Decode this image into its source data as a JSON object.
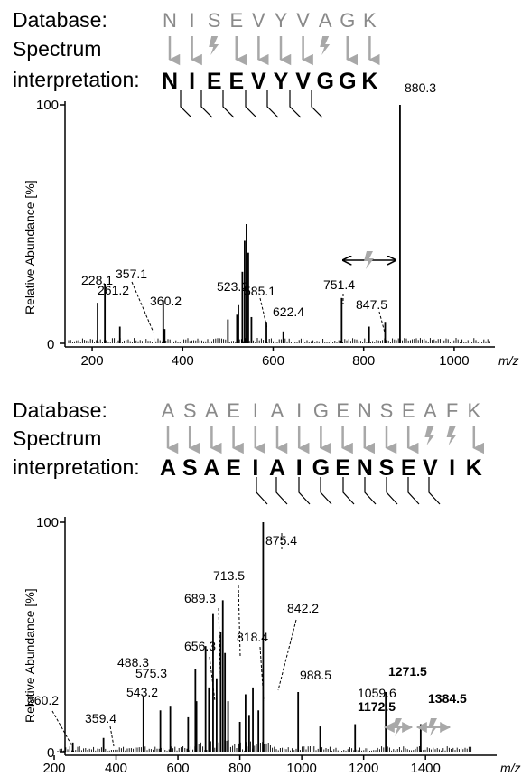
{
  "colors": {
    "axis": "#000000",
    "peak": "#000000",
    "arrow_gray": "#a8a8a8",
    "db_letter_gray": "#8a8a8a"
  },
  "panels": [
    {
      "database_label": "Database:",
      "spectrum_label_1": "Spectrum",
      "spectrum_label_2": "interpretation:",
      "database_sequence": [
        "N",
        "I",
        "S",
        "E",
        "V",
        "Y",
        "V",
        "A",
        "G",
        "K"
      ],
      "interpreted_sequence": [
        "N",
        "I",
        "E",
        "E",
        "V",
        "Y",
        "V",
        "G",
        "G",
        "K"
      ],
      "mismatch_positions": [
        2,
        7
      ],
      "ylabel": "Relative Abundance [%]",
      "xlabel": "m/z",
      "ytick_top": "100",
      "ytick_bottom": "0",
      "xticks": [
        "200",
        "400",
        "600",
        "800",
        "1000"
      ],
      "chart_data": {
        "type": "bar",
        "xlim": [
          140,
          1090
        ],
        "ylim": [
          0,
          100
        ],
        "labeled_peaks": [
          {
            "mz": 228.1,
            "intensity": 25,
            "label": "228.1"
          },
          {
            "mz": 261.2,
            "intensity": 7,
            "label": "261.2"
          },
          {
            "mz": 357.1,
            "intensity": 18,
            "label": "357.1"
          },
          {
            "mz": 360.2,
            "intensity": 6,
            "label": "360.2"
          },
          {
            "mz": 523.2,
            "intensity": 16,
            "label": "523.2"
          },
          {
            "mz": 585.1,
            "intensity": 9,
            "label": "585.1"
          },
          {
            "mz": 622.4,
            "intensity": 5,
            "label": "622.4"
          },
          {
            "mz": 751.4,
            "intensity": 19,
            "label": "751.4"
          },
          {
            "mz": 847.5,
            "intensity": 9,
            "label": "847.5"
          },
          {
            "mz": 880.3,
            "intensity": 100,
            "label": "880.3"
          }
        ],
        "other_peaks": [
          {
            "mz": 212,
            "intensity": 17
          },
          {
            "mz": 500,
            "intensity": 10
          },
          {
            "mz": 520,
            "intensity": 12
          },
          {
            "mz": 532,
            "intensity": 30
          },
          {
            "mz": 537,
            "intensity": 43
          },
          {
            "mz": 541,
            "intensity": 50
          },
          {
            "mz": 545,
            "intensity": 38
          },
          {
            "mz": 552,
            "intensity": 11
          },
          {
            "mz": 812,
            "intensity": 7
          }
        ]
      }
    },
    {
      "database_label": "Database:",
      "spectrum_label_1": "Spectrum",
      "spectrum_label_2": "interpretation:",
      "database_sequence": [
        "A",
        "S",
        "A",
        "E",
        "I",
        "A",
        "I",
        "G",
        "E",
        "N",
        "S",
        "E",
        "A",
        "F",
        "K"
      ],
      "interpreted_sequence": [
        "A",
        "S",
        "A",
        "E",
        "I",
        "A",
        "I",
        "G",
        "E",
        "N",
        "S",
        "E",
        "V",
        "I",
        "K"
      ],
      "mismatch_positions": [
        12,
        13
      ],
      "ylabel": "Relative Abundance [%]",
      "xlabel": "m/z",
      "ytick_top": "100",
      "ytick_bottom": "0",
      "xticks": [
        "200",
        "400",
        "600",
        "800",
        "1000",
        "1200",
        "1400"
      ],
      "chart_data": {
        "type": "bar",
        "xlim": [
          200,
          1560
        ],
        "ylim": [
          0,
          100
        ],
        "labeled_peaks": [
          {
            "mz": 260.2,
            "intensity": 4,
            "label": "260.2",
            "bold": false
          },
          {
            "mz": 359.4,
            "intensity": 6,
            "label": "359.4",
            "bold": false
          },
          {
            "mz": 488.3,
            "intensity": 24,
            "label": "488.3",
            "bold": false
          },
          {
            "mz": 543.2,
            "intensity": 18,
            "label": "543.2",
            "bold": false
          },
          {
            "mz": 575.3,
            "intensity": 20,
            "label": "575.3",
            "bold": false
          },
          {
            "mz": 656.3,
            "intensity": 36,
            "label": "656.3",
            "bold": false
          },
          {
            "mz": 689.3,
            "intensity": 46,
            "label": "689.3",
            "bold": false
          },
          {
            "mz": 713.5,
            "intensity": 60,
            "label": "713.5",
            "bold": false
          },
          {
            "mz": 818.4,
            "intensity": 25,
            "label": "818.4",
            "bold": false
          },
          {
            "mz": 842.2,
            "intensity": 28,
            "label": "842.2",
            "bold": false
          },
          {
            "mz": 875.4,
            "intensity": 100,
            "label": "875.4",
            "bold": false
          },
          {
            "mz": 988.5,
            "intensity": 26,
            "label": "988.5",
            "bold": false
          },
          {
            "mz": 1059.6,
            "intensity": 11,
            "label": "1059.6",
            "bold": false
          },
          {
            "mz": 1172.5,
            "intensity": 12,
            "label": "1172.5",
            "bold": true
          },
          {
            "mz": 1271.5,
            "intensity": 26,
            "label": "1271.5",
            "bold": true
          },
          {
            "mz": 1384.5,
            "intensity": 12,
            "label": "1384.5",
            "bold": true
          }
        ],
        "other_peaks": [
          {
            "mz": 633,
            "intensity": 15
          },
          {
            "mz": 660,
            "intensity": 22
          },
          {
            "mz": 700,
            "intensity": 28
          },
          {
            "mz": 725,
            "intensity": 32
          },
          {
            "mz": 738,
            "intensity": 52
          },
          {
            "mz": 745,
            "intensity": 66
          },
          {
            "mz": 752,
            "intensity": 43
          },
          {
            "mz": 762,
            "intensity": 22
          },
          {
            "mz": 800,
            "intensity": 13
          },
          {
            "mz": 830,
            "intensity": 16
          },
          {
            "mz": 860,
            "intensity": 18
          }
        ]
      }
    }
  ]
}
